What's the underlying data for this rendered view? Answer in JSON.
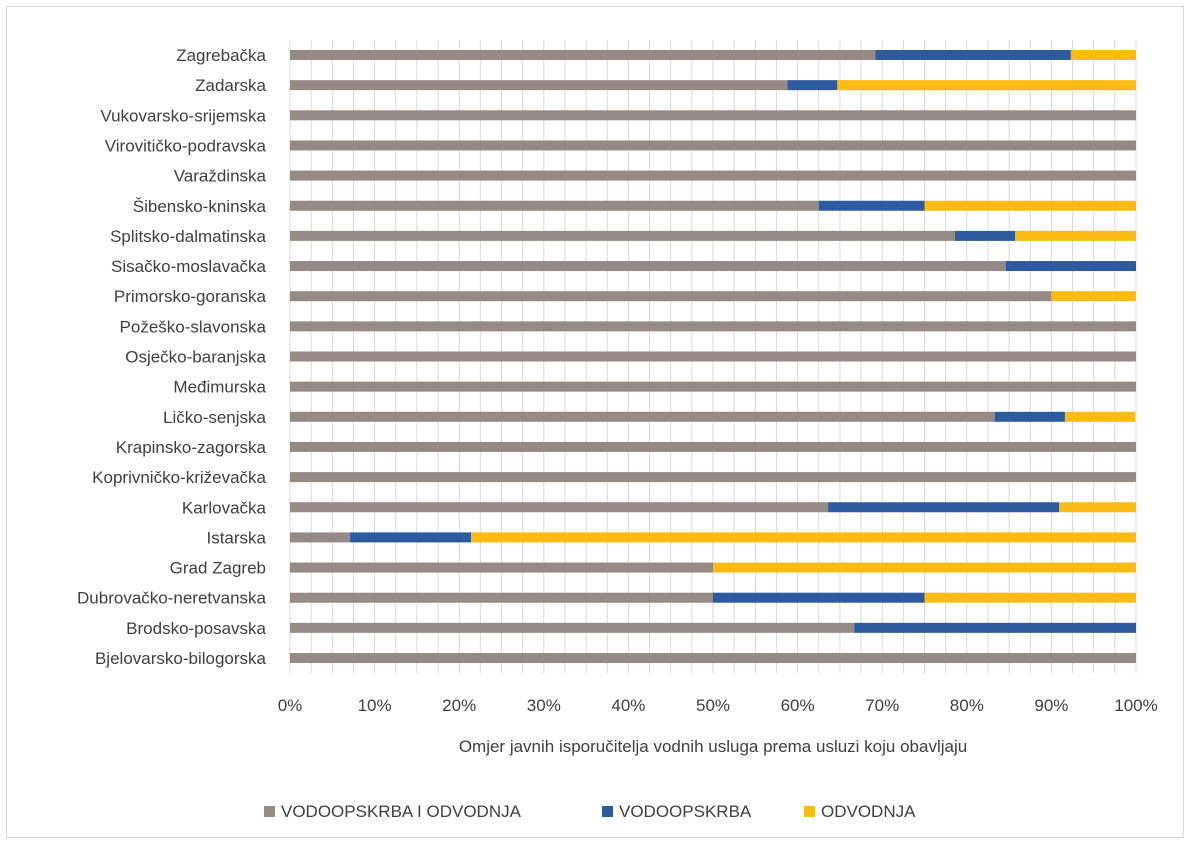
{
  "chart_data": {
    "type": "bar",
    "orientation": "horizontal",
    "stacked": "percent",
    "title": "",
    "xlabel": "Omjer javnih isporučitelja vodnih usluga prema usluzi koju obavljaju",
    "ylabel": "",
    "xlim": [
      0,
      100
    ],
    "x_ticks": [
      "0%",
      "10%",
      "20%",
      "30%",
      "40%",
      "50%",
      "60%",
      "70%",
      "80%",
      "90%",
      "100%"
    ],
    "grid": true,
    "legend_position": "bottom",
    "categories": [
      "Zagrebačka",
      "Zadarska",
      "Vukovarsko-srijemska",
      "Virovitičko-podravska",
      "Varaždinska",
      "Šibensko-kninska",
      "Splitsko-dalmatinska",
      "Sisačko-moslavačka",
      "Primorsko-goranska",
      "Požeško-slavonska",
      "Osječko-baranjska",
      "Međimurska",
      "Ličko-senjska",
      "Krapinsko-zagorska",
      "Koprivničko-križevačka",
      "Karlovačka",
      "Istarska",
      "Grad Zagreb",
      "Dubrovačko-neretvanska",
      "Brodsko-posavska",
      "Bjelovarsko-bilogorska"
    ],
    "series": [
      {
        "name": "VODOOPSKRBA I ODVODNJA",
        "color": "#968a87",
        "values": [
          69.2,
          58.8,
          100,
          100,
          100,
          62.5,
          78.6,
          84.6,
          90,
          100,
          100,
          100,
          83.3,
          100,
          100,
          63.6,
          7.1,
          50,
          50,
          66.7,
          100
        ]
      },
      {
        "name": "VODOOPSKRBA",
        "color": "#2e5aa0",
        "values": [
          23.1,
          5.9,
          0,
          0,
          0,
          12.5,
          7.1,
          15.4,
          0,
          0,
          0,
          0,
          8.3,
          0,
          0,
          27.3,
          14.3,
          0,
          25,
          33.3,
          0
        ]
      },
      {
        "name": "ODVODNJA",
        "color": "#fbbb12",
        "values": [
          7.7,
          35.3,
          0,
          0,
          0,
          25,
          14.3,
          0,
          10,
          0,
          0,
          0,
          8.3,
          0,
          0,
          9.1,
          78.6,
          50,
          25,
          0,
          0
        ]
      }
    ]
  }
}
